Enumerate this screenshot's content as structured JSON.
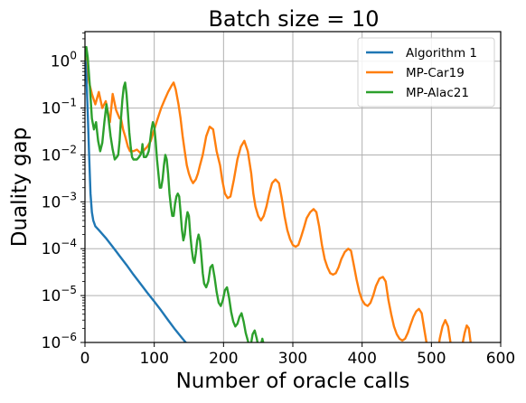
{
  "chart_data": {
    "type": "line",
    "title": "Batch size = 10",
    "xlabel": "Number of oracle calls",
    "ylabel": "Duality gap",
    "xlim": [
      0,
      600
    ],
    "ylim": [
      1e-06,
      4
    ],
    "yscale": "log",
    "grid": true,
    "legend_position": "top-right",
    "x_ticks": [
      0,
      100,
      200,
      300,
      400,
      500,
      600
    ],
    "x_tick_labels": [
      "0",
      "100",
      "200",
      "300",
      "400",
      "500",
      "600"
    ],
    "y_ticks": [
      1e-06,
      1e-05,
      0.0001,
      0.001,
      0.01,
      0.1,
      1
    ],
    "y_tick_labels": [
      {
        "base": "10",
        "exp": "−6"
      },
      {
        "base": "10",
        "exp": "−5"
      },
      {
        "base": "10",
        "exp": "−4"
      },
      {
        "base": "10",
        "exp": "−3"
      },
      {
        "base": "10",
        "exp": "−2"
      },
      {
        "base": "10",
        "exp": "−1"
      },
      {
        "base": "10",
        "exp": "0"
      }
    ],
    "series": [
      {
        "name": "Algorithm 1",
        "color": "#1f77b4",
        "points": [
          [
            0,
            1.5
          ],
          [
            2,
            0.5
          ],
          [
            4,
            0.08
          ],
          [
            6,
            0.01
          ],
          [
            8,
            0.0015
          ],
          [
            10,
            0.0006
          ],
          [
            12,
            0.0004
          ],
          [
            15,
            0.0003
          ],
          [
            20,
            0.00025
          ],
          [
            30,
            0.00017
          ],
          [
            40,
            0.00011
          ],
          [
            50,
            7e-05
          ],
          [
            60,
            4.5e-05
          ],
          [
            70,
            2.8e-05
          ],
          [
            80,
            1.8e-05
          ],
          [
            90,
            1.15e-05
          ],
          [
            100,
            7.5e-06
          ],
          [
            110,
            4.8e-06
          ],
          [
            120,
            3e-06
          ],
          [
            130,
            1.9e-06
          ],
          [
            140,
            1.25e-06
          ],
          [
            148,
            9e-07
          ]
        ]
      },
      {
        "name": "MP-Car19",
        "color": "#ff7f0e",
        "points": [
          [
            0,
            2
          ],
          [
            3,
            0.8
          ],
          [
            6,
            0.35
          ],
          [
            10,
            0.2
          ],
          [
            15,
            0.12
          ],
          [
            20,
            0.22
          ],
          [
            25,
            0.1
          ],
          [
            30,
            0.14
          ],
          [
            36,
            0.05
          ],
          [
            40,
            0.2
          ],
          [
            45,
            0.09
          ],
          [
            50,
            0.06
          ],
          [
            52,
            0.06
          ],
          [
            55,
            0.035
          ],
          [
            58,
            0.025
          ],
          [
            62,
            0.015
          ],
          [
            65,
            0.012
          ],
          [
            70,
            0.012
          ],
          [
            75,
            0.013
          ],
          [
            80,
            0.011
          ],
          [
            84,
            0.012
          ],
          [
            86,
            0.013
          ],
          [
            90,
            0.015
          ],
          [
            95,
            0.02
          ],
          [
            100,
            0.035
          ],
          [
            105,
            0.06
          ],
          [
            110,
            0.1
          ],
          [
            115,
            0.15
          ],
          [
            120,
            0.22
          ],
          [
            125,
            0.3
          ],
          [
            128,
            0.35
          ],
          [
            131,
            0.25
          ],
          [
            135,
            0.12
          ],
          [
            138,
            0.06
          ],
          [
            141,
            0.025
          ],
          [
            144,
            0.012
          ],
          [
            147,
            0.006
          ],
          [
            150,
            0.004
          ],
          [
            153,
            0.003
          ],
          [
            156,
            0.0025
          ],
          [
            160,
            0.003
          ],
          [
            163,
            0.004
          ],
          [
            166,
            0.006
          ],
          [
            170,
            0.01
          ],
          [
            175,
            0.025
          ],
          [
            180,
            0.04
          ],
          [
            185,
            0.035
          ],
          [
            190,
            0.012
          ],
          [
            195,
            0.006
          ],
          [
            198,
            0.003
          ],
          [
            202,
            0.0015
          ],
          [
            206,
            0.0012
          ],
          [
            210,
            0.0013
          ],
          [
            215,
            0.003
          ],
          [
            220,
            0.008
          ],
          [
            225,
            0.015
          ],
          [
            230,
            0.02
          ],
          [
            235,
            0.012
          ],
          [
            240,
            0.004
          ],
          [
            243,
            0.0015
          ],
          [
            246,
            0.0008
          ],
          [
            250,
            0.0005
          ],
          [
            254,
            0.0004
          ],
          [
            258,
            0.0005
          ],
          [
            262,
            0.0008
          ],
          [
            266,
            0.0015
          ],
          [
            270,
            0.0025
          ],
          [
            275,
            0.003
          ],
          [
            280,
            0.0025
          ],
          [
            284,
            0.0012
          ],
          [
            288,
            0.0005
          ],
          [
            292,
            0.00025
          ],
          [
            296,
            0.00016
          ],
          [
            300,
            0.00012
          ],
          [
            304,
            0.00011
          ],
          [
            308,
            0.00012
          ],
          [
            312,
            0.00018
          ],
          [
            316,
            0.00028
          ],
          [
            320,
            0.00045
          ],
          [
            325,
            0.0006
          ],
          [
            330,
            0.0007
          ],
          [
            334,
            0.0006
          ],
          [
            338,
            0.0003
          ],
          [
            342,
            0.00012
          ],
          [
            346,
            6e-05
          ],
          [
            350,
            4e-05
          ],
          [
            354,
            3e-05
          ],
          [
            358,
            2.8e-05
          ],
          [
            362,
            3e-05
          ],
          [
            366,
            4e-05
          ],
          [
            370,
            6e-05
          ],
          [
            375,
            8.5e-05
          ],
          [
            380,
            0.0001
          ],
          [
            384,
            9e-05
          ],
          [
            388,
            4.5e-05
          ],
          [
            392,
            2.2e-05
          ],
          [
            396,
            1.2e-05
          ],
          [
            400,
            8e-06
          ],
          [
            404,
            6.5e-06
          ],
          [
            408,
            6e-06
          ],
          [
            412,
            7e-06
          ],
          [
            416,
            1e-05
          ],
          [
            420,
            1.6e-05
          ],
          [
            425,
            2.3e-05
          ],
          [
            430,
            2.5e-05
          ],
          [
            434,
            2e-05
          ],
          [
            438,
            8e-06
          ],
          [
            442,
            4e-06
          ],
          [
            446,
            2.2e-06
          ],
          [
            450,
            1.5e-06
          ],
          [
            454,
            1.2e-06
          ],
          [
            458,
            1.1e-06
          ],
          [
            462,
            1.2e-06
          ],
          [
            466,
            1.6e-06
          ],
          [
            470,
            2.4e-06
          ],
          [
            474,
            3.5e-06
          ],
          [
            478,
            4.6e-06
          ],
          [
            482,
            5.2e-06
          ],
          [
            486,
            4.2e-06
          ],
          [
            490,
            1.8e-06
          ],
          [
            494,
            8e-07
          ],
          [
            510,
            7e-07
          ],
          [
            512,
            1.2e-06
          ],
          [
            516,
            2.2e-06
          ],
          [
            520,
            3e-06
          ],
          [
            524,
            2.2e-06
          ],
          [
            528,
            9e-07
          ],
          [
            544,
            8e-07
          ],
          [
            548,
            1.6e-06
          ],
          [
            551,
            2.3e-06
          ],
          [
            554,
            2e-06
          ],
          [
            557,
            9e-07
          ]
        ]
      },
      {
        "name": "MP-Alac21",
        "color": "#2ca02c",
        "points": [
          [
            0,
            1
          ],
          [
            2,
            2
          ],
          [
            4,
            1.2
          ],
          [
            7,
            0.3
          ],
          [
            10,
            0.06
          ],
          [
            13,
            0.035
          ],
          [
            16,
            0.05
          ],
          [
            19,
            0.02
          ],
          [
            22,
            0.012
          ],
          [
            25,
            0.018
          ],
          [
            28,
            0.05
          ],
          [
            31,
            0.12
          ],
          [
            34,
            0.06
          ],
          [
            37,
            0.025
          ],
          [
            40,
            0.013
          ],
          [
            43,
            0.008
          ],
          [
            46,
            0.009
          ],
          [
            48,
            0.01
          ],
          [
            50,
            0.02
          ],
          [
            52,
            0.06
          ],
          [
            54,
            0.15
          ],
          [
            56,
            0.28
          ],
          [
            58,
            0.35
          ],
          [
            60,
            0.2
          ],
          [
            62,
            0.08
          ],
          [
            64,
            0.03
          ],
          [
            66,
            0.015
          ],
          [
            68,
            0.009
          ],
          [
            70,
            0.008
          ],
          [
            75,
            0.008
          ],
          [
            78,
            0.009
          ],
          [
            80,
            0.01
          ],
          [
            82,
            0.012
          ],
          [
            83,
            0.017
          ],
          [
            84,
            0.012
          ],
          [
            85,
            0.009
          ],
          [
            88,
            0.009
          ],
          [
            90,
            0.01
          ],
          [
            92,
            0.012
          ],
          [
            94,
            0.02
          ],
          [
            96,
            0.035
          ],
          [
            98,
            0.05
          ],
          [
            100,
            0.04
          ],
          [
            102,
            0.02
          ],
          [
            104,
            0.008
          ],
          [
            106,
            0.004
          ],
          [
            108,
            0.002
          ],
          [
            110,
            0.002
          ],
          [
            112,
            0.003
          ],
          [
            114,
            0.006
          ],
          [
            116,
            0.01
          ],
          [
            118,
            0.008
          ],
          [
            120,
            0.004
          ],
          [
            122,
            0.0015
          ],
          [
            124,
            0.0008
          ],
          [
            126,
            0.0005
          ],
          [
            128,
            0.0005
          ],
          [
            130,
            0.0009
          ],
          [
            132,
            0.0013
          ],
          [
            134,
            0.0015
          ],
          [
            136,
            0.0013
          ],
          [
            138,
            0.0006
          ],
          [
            140,
            0.00025
          ],
          [
            142,
            0.00015
          ],
          [
            144,
            0.0002
          ],
          [
            146,
            0.0004
          ],
          [
            148,
            0.0006
          ],
          [
            150,
            0.0005
          ],
          [
            152,
            0.0002
          ],
          [
            154,
            0.0001
          ],
          [
            156,
            6e-05
          ],
          [
            158,
            5e-05
          ],
          [
            160,
            8e-05
          ],
          [
            162,
            0.00015
          ],
          [
            164,
            0.0002
          ],
          [
            166,
            0.00015
          ],
          [
            168,
            7e-05
          ],
          [
            170,
            3e-05
          ],
          [
            172,
            1.8e-05
          ],
          [
            175,
            1.5e-05
          ],
          [
            178,
            2e-05
          ],
          [
            181,
            4e-05
          ],
          [
            184,
            4.5e-05
          ],
          [
            187,
            2.5e-05
          ],
          [
            190,
            1.2e-05
          ],
          [
            193,
            7e-06
          ],
          [
            196,
            6e-06
          ],
          [
            199,
            8e-06
          ],
          [
            202,
            1.3e-05
          ],
          [
            205,
            1.5e-05
          ],
          [
            208,
            9e-06
          ],
          [
            211,
            4.5e-06
          ],
          [
            214,
            2.8e-06
          ],
          [
            217,
            2.2e-06
          ],
          [
            220,
            2.5e-06
          ],
          [
            223,
            3.5e-06
          ],
          [
            226,
            4.2e-06
          ],
          [
            229,
            2.8e-06
          ],
          [
            232,
            1.6e-06
          ],
          [
            235,
            1.1e-06
          ],
          [
            238,
            8e-07
          ],
          [
            240,
            1e-06
          ],
          [
            242,
            1.5e-06
          ],
          [
            245,
            1.8e-06
          ],
          [
            248,
            1.2e-06
          ],
          [
            251,
            7e-07
          ],
          [
            254,
            9e-07
          ],
          [
            256,
            1.2e-06
          ],
          [
            258,
            9e-07
          ]
        ]
      }
    ]
  }
}
